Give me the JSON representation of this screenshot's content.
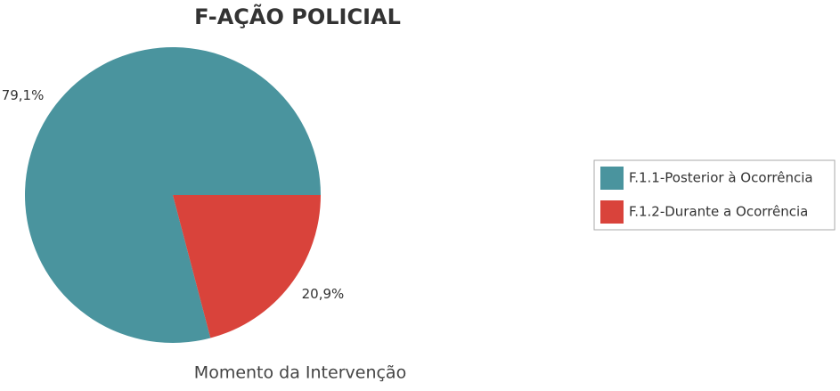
{
  "chart_data": {
    "type": "pie",
    "title": "F-AÇÃO POLICIAL",
    "subtitle": "Momento da Intervenção",
    "categories": [
      "F.1.1-Posterior à Ocorrência",
      "F.1.2-Durante a Ocorrência"
    ],
    "values": [
      79.1,
      20.9
    ],
    "value_labels": [
      "79,1%",
      "20,9%"
    ],
    "colors": [
      "#4a949e",
      "#d9433b"
    ],
    "legend": "right"
  }
}
